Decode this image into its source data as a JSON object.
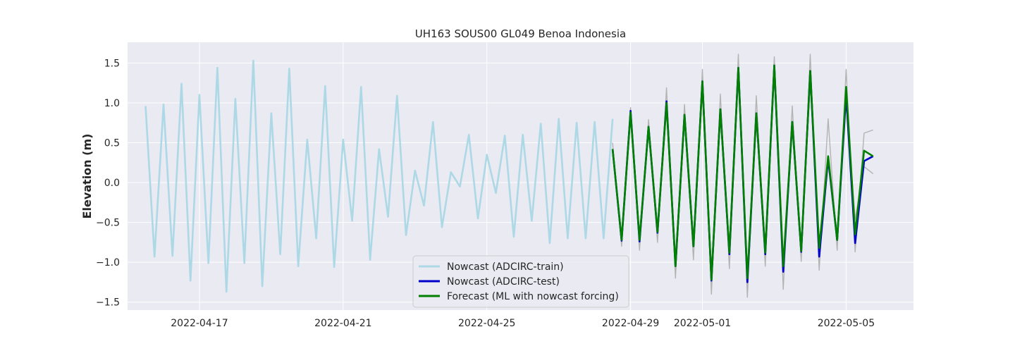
{
  "chart_data": {
    "type": "line",
    "title": "UH163 SOUS00 GL049 Benoa Indonesia",
    "xlabel": "",
    "ylabel": "Elevation (m)",
    "xlim": [
      "2022-04-15T00:00",
      "2022-05-06T21:00"
    ],
    "ylim": [
      -1.6,
      1.76
    ],
    "x_ticks": [
      "2022-04-17",
      "2022-04-21",
      "2022-04-25",
      "2022-04-29",
      "2022-05-01",
      "2022-05-05"
    ],
    "y_ticks": [
      -1.5,
      -1.0,
      -0.5,
      0.0,
      0.5,
      1.0,
      1.5
    ],
    "grid": true,
    "legend_position": "lower-center",
    "colors": {
      "plot_bg": "#eaeaf2",
      "grid": "#ffffff",
      "train": "#add8e6",
      "test": "#0000cd",
      "forecast": "#008000",
      "members": "#b3b3b3"
    },
    "series": [
      {
        "name": "Nowcast (ADCIRC-train)",
        "key": "train",
        "x": [
          "2022-04-15T12:00",
          "2022-04-15T18:00",
          "2022-04-16T00:00",
          "2022-04-16T06:00",
          "2022-04-16T12:00",
          "2022-04-16T18:00",
          "2022-04-17T00:00",
          "2022-04-17T06:00",
          "2022-04-17T12:00",
          "2022-04-17T18:00",
          "2022-04-18T00:00",
          "2022-04-18T06:00",
          "2022-04-18T12:00",
          "2022-04-18T18:00",
          "2022-04-19T00:00",
          "2022-04-19T06:00",
          "2022-04-19T12:00",
          "2022-04-19T18:00",
          "2022-04-20T00:00",
          "2022-04-20T06:00",
          "2022-04-20T12:00",
          "2022-04-20T18:00",
          "2022-04-21T00:00",
          "2022-04-21T06:00",
          "2022-04-21T12:00",
          "2022-04-21T18:00",
          "2022-04-22T00:00",
          "2022-04-22T06:00",
          "2022-04-22T12:00",
          "2022-04-22T18:00",
          "2022-04-23T00:00",
          "2022-04-23T06:00",
          "2022-04-23T12:00",
          "2022-04-23T18:00",
          "2022-04-24T00:00",
          "2022-04-24T06:00",
          "2022-04-24T12:00",
          "2022-04-24T18:00",
          "2022-04-25T00:00",
          "2022-04-25T06:00",
          "2022-04-25T12:00",
          "2022-04-25T18:00",
          "2022-04-26T00:00",
          "2022-04-26T06:00",
          "2022-04-26T12:00",
          "2022-04-26T18:00",
          "2022-04-27T00:00",
          "2022-04-27T06:00",
          "2022-04-27T12:00",
          "2022-04-27T18:00",
          "2022-04-28T00:00",
          "2022-04-28T06:00",
          "2022-04-28T12:00"
        ],
        "values": [
          0.96,
          -0.93,
          0.98,
          -0.92,
          1.24,
          -1.23,
          1.1,
          -1.01,
          1.44,
          -1.37,
          1.05,
          -1.01,
          1.53,
          -1.3,
          0.87,
          -0.9,
          1.43,
          -1.05,
          0.54,
          -0.7,
          1.21,
          -1.06,
          0.54,
          -0.48,
          1.2,
          -0.97,
          0.42,
          -0.43,
          1.09,
          -0.66,
          0.15,
          -0.29,
          0.76,
          -0.56,
          0.13,
          -0.05,
          0.6,
          -0.45,
          0.35,
          -0.13,
          0.59,
          -0.68,
          0.6,
          -0.48,
          0.74,
          -0.76,
          0.8,
          -0.7,
          0.75,
          -0.7,
          0.76,
          -0.7,
          0.8
        ]
      },
      {
        "name": "Nowcast (ADCIRC-test)",
        "key": "test",
        "x": [
          "2022-04-28T12:00",
          "2022-04-28T18:00",
          "2022-04-29T00:00",
          "2022-04-29T06:00",
          "2022-04-29T12:00",
          "2022-04-29T18:00",
          "2022-04-30T00:00",
          "2022-04-30T06:00",
          "2022-04-30T12:00",
          "2022-04-30T18:00",
          "2022-05-01T00:00",
          "2022-05-01T06:00",
          "2022-05-01T12:00",
          "2022-05-01T18:00",
          "2022-05-02T00:00",
          "2022-05-02T06:00",
          "2022-05-02T12:00",
          "2022-05-02T18:00",
          "2022-05-03T00:00",
          "2022-05-03T06:00",
          "2022-05-03T12:00",
          "2022-05-03T18:00",
          "2022-05-04T00:00",
          "2022-05-04T06:00",
          "2022-05-04T12:00",
          "2022-05-04T18:00",
          "2022-05-05T00:00",
          "2022-05-05T06:00",
          "2022-05-05T12:00",
          "2022-05-05T18:00"
        ],
        "values": [
          0.42,
          -0.73,
          0.9,
          -0.74,
          0.7,
          -0.63,
          1.02,
          -1.05,
          0.85,
          -0.8,
          1.27,
          -1.23,
          0.92,
          -0.9,
          1.44,
          -1.25,
          0.87,
          -0.9,
          1.47,
          -1.12,
          0.76,
          -0.87,
          1.4,
          -0.93,
          0.3,
          -0.72,
          1.1,
          -0.76,
          0.27,
          0.33
        ]
      },
      {
        "name": "Forecast (ML with nowcast forcing)",
        "key": "forecast",
        "x": [
          "2022-04-28T12:00",
          "2022-04-28T18:00",
          "2022-04-29T00:00",
          "2022-04-29T06:00",
          "2022-04-29T12:00",
          "2022-04-29T18:00",
          "2022-04-30T00:00",
          "2022-04-30T06:00",
          "2022-04-30T12:00",
          "2022-04-30T18:00",
          "2022-05-01T00:00",
          "2022-05-01T06:00",
          "2022-05-01T12:00",
          "2022-05-01T18:00",
          "2022-05-02T00:00",
          "2022-05-02T06:00",
          "2022-05-02T12:00",
          "2022-05-02T18:00",
          "2022-05-03T00:00",
          "2022-05-03T06:00",
          "2022-05-03T12:00",
          "2022-05-03T18:00",
          "2022-05-04T00:00",
          "2022-05-04T06:00",
          "2022-05-04T12:00",
          "2022-05-04T18:00",
          "2022-05-05T00:00",
          "2022-05-05T06:00",
          "2022-05-05T12:00",
          "2022-05-05T18:00"
        ],
        "values": [
          0.42,
          -0.72,
          0.88,
          -0.72,
          0.7,
          -0.62,
          1.0,
          -1.05,
          0.85,
          -0.8,
          1.27,
          -1.22,
          0.92,
          -0.88,
          1.44,
          -1.2,
          0.87,
          -0.88,
          1.47,
          -1.05,
          0.76,
          -0.86,
          1.4,
          -0.82,
          0.33,
          -0.72,
          1.2,
          -0.65,
          0.4,
          0.33
        ]
      }
    ],
    "ensemble_members": [
      {
        "x": [
          "2022-04-28T12:00",
          "2022-04-28T18:00",
          "2022-04-29T00:00",
          "2022-04-29T06:00",
          "2022-04-29T12:00",
          "2022-04-29T18:00",
          "2022-04-30T00:00",
          "2022-04-30T06:00",
          "2022-04-30T12:00",
          "2022-04-30T18:00",
          "2022-05-01T00:00",
          "2022-05-01T06:00",
          "2022-05-01T12:00",
          "2022-05-01T18:00",
          "2022-05-02T00:00",
          "2022-05-02T06:00",
          "2022-05-02T12:00",
          "2022-05-02T18:00",
          "2022-05-03T00:00",
          "2022-05-03T06:00",
          "2022-05-03T12:00",
          "2022-05-03T18:00",
          "2022-05-04T00:00",
          "2022-05-04T06:00",
          "2022-05-04T12:00",
          "2022-05-04T18:00",
          "2022-05-05T00:00",
          "2022-05-05T06:00",
          "2022-05-05T12:00",
          "2022-05-05T18:00"
        ],
        "values": [
          0.5,
          -0.8,
          0.94,
          -0.85,
          0.79,
          -0.75,
          1.19,
          -1.2,
          0.98,
          -0.97,
          1.42,
          -1.4,
          1.11,
          -1.08,
          1.61,
          -1.44,
          1.09,
          -1.05,
          1.58,
          -1.34,
          0.96,
          -0.99,
          1.61,
          -1.1,
          0.8,
          -0.85,
          1.42,
          -0.87,
          0.62,
          0.66
        ]
      },
      {
        "x": [
          "2022-04-28T12:00",
          "2022-04-28T18:00",
          "2022-04-29T00:00",
          "2022-04-29T06:00",
          "2022-04-29T12:00",
          "2022-04-29T18:00",
          "2022-04-30T00:00",
          "2022-04-30T06:00",
          "2022-04-30T12:00",
          "2022-04-30T18:00",
          "2022-05-01T00:00",
          "2022-05-01T06:00",
          "2022-05-01T12:00",
          "2022-05-01T18:00",
          "2022-05-02T00:00",
          "2022-05-02T06:00",
          "2022-05-02T12:00",
          "2022-05-02T18:00",
          "2022-05-03T00:00",
          "2022-05-03T06:00",
          "2022-05-03T12:00",
          "2022-05-03T18:00",
          "2022-05-04T00:00",
          "2022-05-04T06:00",
          "2022-05-04T12:00",
          "2022-05-04T18:00",
          "2022-05-05T00:00",
          "2022-05-05T06:00",
          "2022-05-05T12:00",
          "2022-05-05T18:00"
        ],
        "values": [
          0.36,
          -0.66,
          0.8,
          -0.64,
          0.62,
          -0.55,
          0.9,
          -0.95,
          0.76,
          -0.7,
          1.13,
          -1.08,
          0.8,
          -0.78,
          1.3,
          -1.1,
          0.76,
          -0.78,
          1.36,
          -0.98,
          0.66,
          -0.76,
          1.22,
          -0.76,
          0.24,
          -0.63,
          1.0,
          -0.46,
          0.2,
          0.11
        ]
      }
    ]
  }
}
